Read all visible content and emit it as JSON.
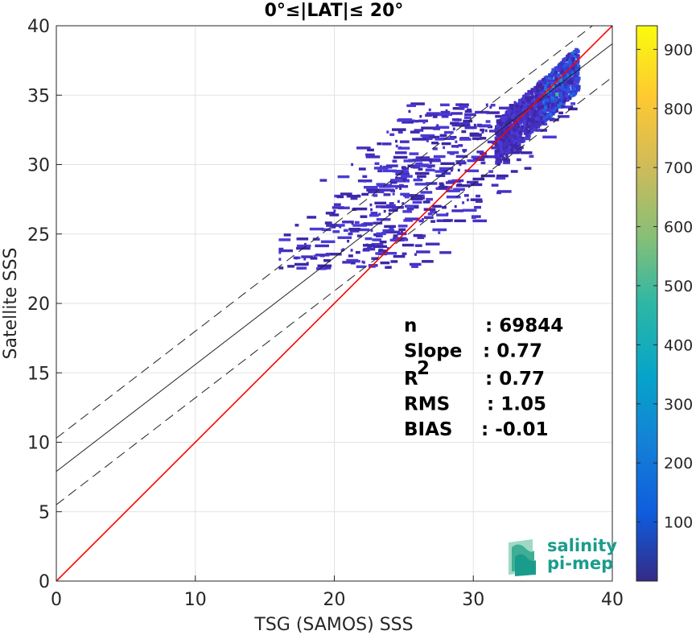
{
  "chart_data": {
    "type": "heatmap",
    "title": "0°≤|LAT|≤ 20°",
    "xlabel": "TSG (SAMOS) SSS",
    "ylabel": "Satellite SSS",
    "xlim": [
      0,
      40
    ],
    "ylim": [
      0,
      40
    ],
    "xticks": [
      "0",
      "10",
      "20",
      "30",
      "40"
    ],
    "yticks": [
      "0",
      "5",
      "10",
      "15",
      "20",
      "25",
      "30",
      "35",
      "40"
    ],
    "grid": true,
    "colorbar": {
      "range": [
        0,
        940
      ],
      "ticks": [
        "100",
        "200",
        "300",
        "400",
        "500",
        "600",
        "700",
        "800",
        "900"
      ],
      "colormap": "parula"
    },
    "lines": {
      "identity": {
        "slope": 1,
        "intercept": 0,
        "color": "#ff0000"
      },
      "fit": {
        "slope": 0.77,
        "intercept": 7.9,
        "color": "#000000"
      },
      "fit_upper": {
        "slope": 0.77,
        "intercept": 10.3,
        "style": "dashed"
      },
      "fit_lower": {
        "slope": 0.77,
        "intercept": 5.5,
        "style": "dashed"
      }
    },
    "density_region": {
      "core": {
        "x": [
          32,
          37.5
        ],
        "y": [
          30,
          37.5
        ]
      },
      "tail": {
        "x": [
          16,
          37
        ],
        "y": [
          22.5,
          35
        ]
      }
    },
    "stats": [
      {
        "label": "n",
        "value": ": 69844"
      },
      {
        "label": "Slope",
        "value": ": 0.77"
      },
      {
        "label": "R",
        "sup": "2",
        "value": ": 0.77"
      },
      {
        "label": "RMS",
        "value": ": 1.05"
      },
      {
        "label": "BIAS",
        "value": ": -0.01"
      }
    ]
  },
  "logo": {
    "line1": "salinity",
    "line2": "pi-mep"
  }
}
